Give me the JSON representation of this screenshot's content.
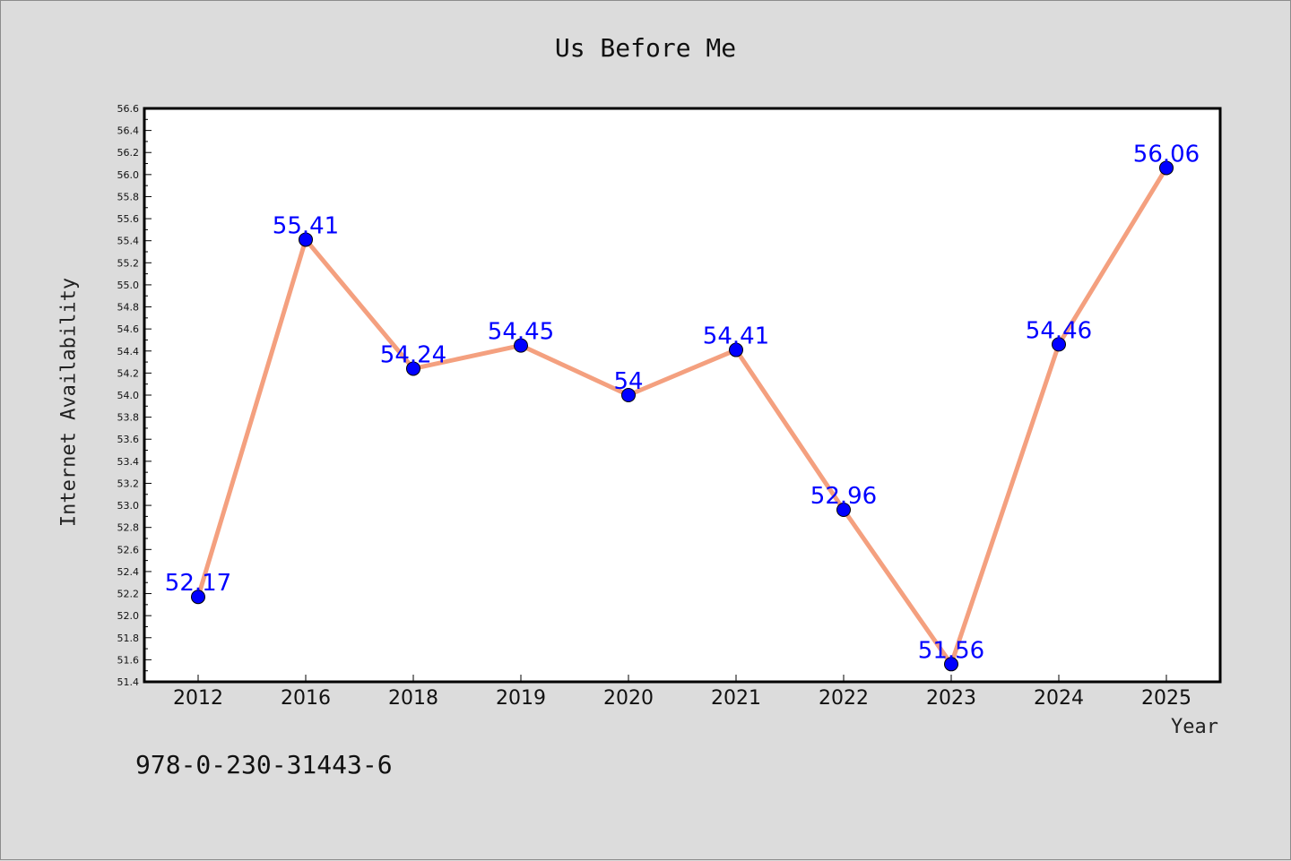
{
  "chart_data": {
    "type": "line",
    "title": "Us Before Me",
    "xlabel": "Year",
    "ylabel": "Internet Availability",
    "categories": [
      "2012",
      "2016",
      "2018",
      "2019",
      "2020",
      "2021",
      "2022",
      "2023",
      "2024",
      "2025"
    ],
    "series": [
      {
        "values": [
          52.17,
          55.41,
          54.24,
          54.45,
          54,
          54.41,
          52.96,
          51.56,
          54.46,
          56.06
        ],
        "data_labels": [
          "52.17",
          "55.41",
          "54.24",
          "54.45",
          "54",
          "54.41",
          "52.96",
          "51.56",
          "54.46",
          "56.06"
        ],
        "line_color": "#f4a07f",
        "marker_color": "#0000ff",
        "label_color": "#0000ff"
      }
    ],
    "ylim": [
      51.4,
      56.6
    ],
    "yticks": [
      "51.4",
      "51.6",
      "51.8",
      "52.0",
      "52.2",
      "52.4",
      "52.6",
      "52.8",
      "53.0",
      "53.2",
      "53.4",
      "53.6",
      "53.8",
      "54.0",
      "54.2",
      "54.4",
      "54.6",
      "54.8",
      "55.0",
      "55.2",
      "55.4",
      "55.6",
      "55.8",
      "56.0",
      "56.2",
      "56.4",
      "56.6"
    ],
    "grid": false,
    "legend": "none"
  },
  "footer": {
    "isbn": "978-0-230-31443-6"
  },
  "colors": {
    "background": "#dcdcdc",
    "plot_background": "#ffffff"
  }
}
